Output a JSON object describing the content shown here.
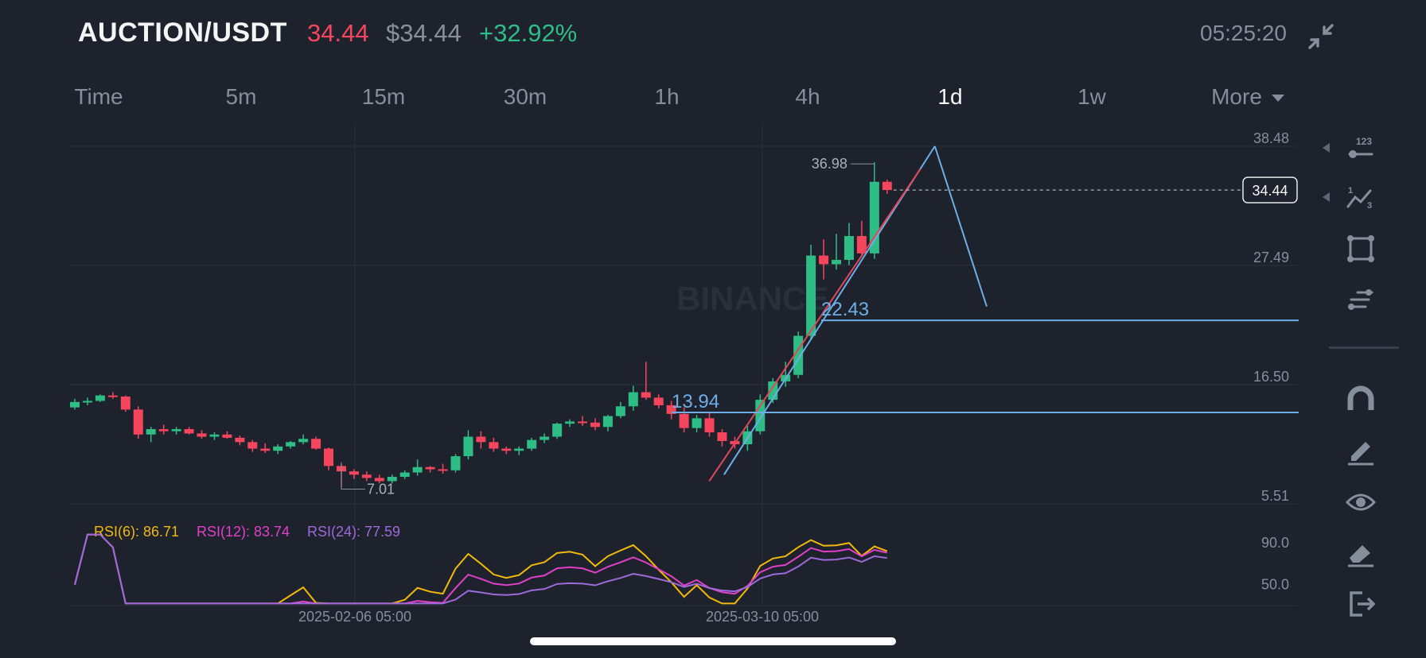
{
  "header": {
    "pair": "AUCTION/USDT",
    "last_price": "34.44",
    "usd_price": "$34.44",
    "change_pct": "+32.92%",
    "clock": "05:25:20",
    "collapse_icon": "collapse-icon"
  },
  "tabs": [
    {
      "label": "Time"
    },
    {
      "label": "5m"
    },
    {
      "label": "15m"
    },
    {
      "label": "30m"
    },
    {
      "label": "1h"
    },
    {
      "label": "4h"
    },
    {
      "label": "1d"
    },
    {
      "label": "1w"
    },
    {
      "label": "More"
    }
  ],
  "active_tab": "1d",
  "chart_data": {
    "type": "candlestick",
    "y_axis_labels": [
      "38.48",
      "27.49",
      "16.50",
      "5.51"
    ],
    "ylim": [
      5.51,
      38.48
    ],
    "x_axis_labels": [
      "2025-02-06 05:00",
      "2025-03-10 05:00"
    ],
    "current_price_label": "34.44",
    "high_label": "36.98",
    "low_label": "7.01",
    "annotations": [
      "22.43",
      "13.94"
    ],
    "watermark": "BINANCE",
    "candles": [
      [
        14.4,
        15.2,
        14.2,
        14.9
      ],
      [
        14.9,
        15.3,
        14.6,
        15.0
      ],
      [
        15.0,
        15.6,
        14.9,
        15.5
      ],
      [
        15.5,
        15.8,
        15.2,
        15.4
      ],
      [
        15.4,
        15.5,
        14.0,
        14.2
      ],
      [
        14.2,
        14.5,
        11.5,
        11.9
      ],
      [
        11.9,
        12.6,
        11.2,
        12.4
      ],
      [
        12.4,
        12.8,
        11.9,
        12.2
      ],
      [
        12.2,
        12.6,
        11.9,
        12.4
      ],
      [
        12.4,
        12.6,
        11.9,
        12.0
      ],
      [
        12.0,
        12.3,
        11.5,
        11.7
      ],
      [
        11.7,
        12.1,
        11.4,
        11.9
      ],
      [
        11.9,
        12.2,
        11.5,
        11.6
      ],
      [
        11.6,
        11.8,
        10.9,
        11.2
      ],
      [
        11.2,
        11.4,
        10.3,
        10.6
      ],
      [
        10.6,
        11.1,
        10.2,
        10.4
      ],
      [
        10.4,
        11.0,
        10.1,
        10.8
      ],
      [
        10.8,
        11.3,
        10.6,
        11.2
      ],
      [
        11.2,
        11.9,
        11.0,
        11.5
      ],
      [
        11.5,
        11.7,
        10.5,
        10.6
      ],
      [
        10.6,
        10.7,
        8.6,
        9.0
      ],
      [
        9.0,
        9.2,
        7.01,
        8.5
      ],
      [
        8.5,
        8.7,
        7.8,
        8.2
      ],
      [
        8.2,
        8.5,
        7.6,
        7.9
      ],
      [
        7.9,
        8.2,
        7.4,
        7.6
      ],
      [
        7.6,
        8.2,
        7.4,
        8.0
      ],
      [
        8.0,
        8.6,
        7.8,
        8.4
      ],
      [
        8.4,
        9.6,
        8.1,
        8.9
      ],
      [
        8.9,
        9.0,
        8.4,
        8.7
      ],
      [
        8.7,
        9.2,
        8.3,
        8.6
      ],
      [
        8.6,
        10.1,
        8.4,
        9.9
      ],
      [
        9.9,
        12.3,
        9.6,
        11.7
      ],
      [
        11.7,
        12.2,
        10.6,
        11.2
      ],
      [
        11.2,
        11.6,
        10.3,
        10.6
      ],
      [
        10.6,
        10.8,
        10.1,
        10.4
      ],
      [
        10.4,
        10.8,
        10.0,
        10.6
      ],
      [
        10.6,
        11.6,
        10.4,
        11.4
      ],
      [
        11.4,
        12.0,
        11.1,
        11.7
      ],
      [
        11.7,
        13.0,
        11.5,
        12.9
      ],
      [
        12.9,
        13.3,
        12.6,
        13.1
      ],
      [
        13.1,
        13.6,
        12.7,
        13.0
      ],
      [
        13.0,
        13.4,
        12.3,
        12.6
      ],
      [
        12.6,
        13.7,
        12.2,
        13.6
      ],
      [
        13.6,
        14.9,
        13.4,
        14.5
      ],
      [
        14.5,
        16.4,
        14.1,
        15.8
      ],
      [
        15.8,
        18.6,
        15.1,
        15.3
      ],
      [
        15.3,
        15.6,
        14.3,
        14.6
      ],
      [
        14.6,
        15.0,
        13.3,
        13.8
      ],
      [
        13.8,
        14.4,
        12.1,
        12.5
      ],
      [
        12.5,
        13.7,
        12.1,
        13.4
      ],
      [
        13.4,
        13.9,
        11.7,
        12.1
      ],
      [
        12.1,
        12.4,
        10.8,
        11.3
      ],
      [
        11.3,
        11.7,
        10.6,
        11.0
      ],
      [
        11.0,
        12.7,
        10.4,
        12.2
      ],
      [
        12.2,
        15.6,
        11.9,
        15.1
      ],
      [
        15.1,
        17.1,
        14.8,
        16.8
      ],
      [
        16.8,
        18.6,
        16.3,
        17.4
      ],
      [
        17.4,
        21.4,
        17.1,
        21.0
      ],
      [
        21.0,
        29.4,
        20.6,
        28.4
      ],
      [
        28.4,
        29.9,
        26.2,
        27.6
      ],
      [
        27.6,
        30.4,
        27.1,
        28.0
      ],
      [
        28.0,
        31.4,
        27.5,
        30.2
      ],
      [
        30.2,
        31.6,
        28.3,
        28.6
      ],
      [
        28.6,
        37.0,
        28.1,
        35.2
      ],
      [
        35.2,
        35.4,
        34.1,
        34.44
      ]
    ]
  },
  "rsi": {
    "labels": [
      {
        "text": "RSI(6): 86.71",
        "color": "#f0b90b"
      },
      {
        "text": "RSI(12): 83.74",
        "color": "#e040c8"
      },
      {
        "text": "RSI(24): 77.59",
        "color": "#9c6ad9"
      }
    ],
    "axis_labels": [
      "90.0",
      "50.0"
    ],
    "ylim": [
      30,
      100
    ]
  },
  "toolbar": [
    {
      "icon": "indicator-123-icon"
    },
    {
      "icon": "compare-icon"
    },
    {
      "icon": "shape-square-icon"
    },
    {
      "icon": "list-settings-icon"
    },
    {
      "icon": "magnet-icon"
    },
    {
      "icon": "pencil-icon"
    },
    {
      "icon": "eye-icon"
    },
    {
      "icon": "eraser-icon"
    },
    {
      "icon": "exit-icon"
    }
  ],
  "colors": {
    "background": "#1e222d",
    "up": "#2ebd85",
    "down": "#f6465d",
    "trendline_blue": "#6eaee6",
    "trendline_red": "#e0475a",
    "rsi6": "#f0b90b",
    "rsi12": "#e040c8",
    "rsi24": "#9c6ad9"
  }
}
